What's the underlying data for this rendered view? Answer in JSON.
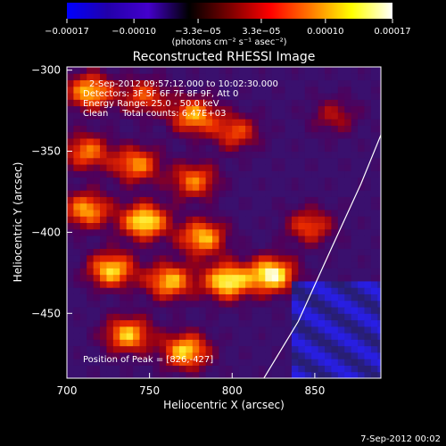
{
  "chart_data": {
    "type": "heatmap",
    "title": "Reconstructed RHESSI Image",
    "xlabel": "Heliocentric X (arcsec)",
    "ylabel": "Heliocentric Y (arcsec)",
    "xlim": [
      700,
      890
    ],
    "ylim": [
      -490,
      -298
    ],
    "x_ticks": [
      700,
      750,
      800,
      850
    ],
    "x_tick_labels": [
      "700",
      "750",
      "800",
      "850"
    ],
    "y_ticks": [
      -300,
      -350,
      -400,
      -450
    ],
    "y_tick_labels": [
      "−300",
      "−350",
      "−400",
      "−450"
    ],
    "colorbar": {
      "range": [
        -0.00017,
        0.00017
      ],
      "ticks": [
        -0.00017,
        -0.0001,
        -3.3e-05,
        3.3e-05,
        0.0001,
        0.00017
      ],
      "tick_labels": [
        "−0.00017",
        "−0.00010",
        "−3.3e−05",
        "3.3e−05",
        "0.00010",
        "0.00017"
      ],
      "units_text": "(photons cm⁻² s⁻¹ asec⁻²)",
      "colors": [
        "#0000ff",
        "#2200aa",
        "#4400cc",
        "#000000",
        "#7a0000",
        "#ff0000",
        "#ff7a00",
        "#ffff00",
        "#ffffff"
      ]
    },
    "annotations": [
      "2-Sep-2012 09:57:12.000 to 10:02:30.000",
      "Detectors: 3F 5F 6F 7F 8F 9F, Att 0",
      "Energy Range: 25.0 - 50.0 keV",
      "Clean     Total counts: 6.47E+03"
    ],
    "peak_label": "Position of Peak = [826,-427]",
    "limb_points": [
      [
        818,
        -492
      ],
      [
        840,
        -455
      ],
      [
        860,
        -410
      ],
      [
        878,
        -370
      ],
      [
        890,
        -340
      ]
    ],
    "hot_blobs": [
      {
        "x": 712,
        "y": -315,
        "v": 0.8
      },
      {
        "x": 745,
        "y": -318,
        "v": 0.55
      },
      {
        "x": 775,
        "y": -330,
        "v": 0.75
      },
      {
        "x": 800,
        "y": -340,
        "v": 0.55
      },
      {
        "x": 710,
        "y": -352,
        "v": 0.65
      },
      {
        "x": 740,
        "y": -360,
        "v": 0.7
      },
      {
        "x": 775,
        "y": -370,
        "v": 0.65
      },
      {
        "x": 710,
        "y": -388,
        "v": 0.75
      },
      {
        "x": 745,
        "y": -395,
        "v": 0.95
      },
      {
        "x": 780,
        "y": -405,
        "v": 0.8
      },
      {
        "x": 725,
        "y": -425,
        "v": 0.85
      },
      {
        "x": 760,
        "y": -432,
        "v": 0.8
      },
      {
        "x": 795,
        "y": -432,
        "v": 0.95
      },
      {
        "x": 822,
        "y": -428,
        "v": 1.0
      },
      {
        "x": 735,
        "y": -465,
        "v": 0.8
      },
      {
        "x": 770,
        "y": -475,
        "v": 0.85
      },
      {
        "x": 845,
        "y": -398,
        "v": 0.55
      },
      {
        "x": 860,
        "y": -330,
        "v": 0.35
      }
    ]
  },
  "footer": {
    "date_text": "7-Sep-2012 00:02"
  }
}
